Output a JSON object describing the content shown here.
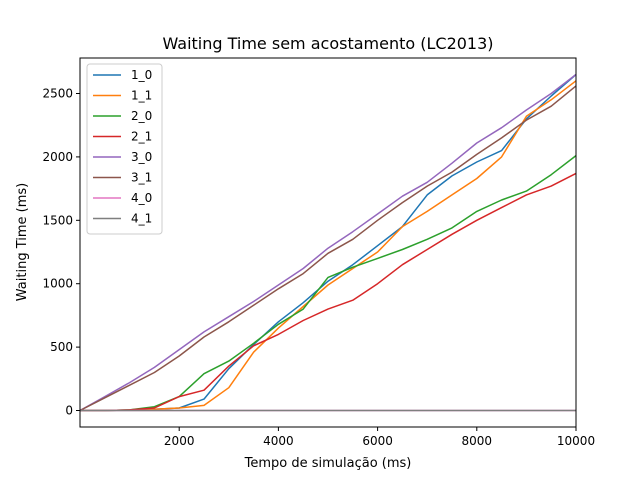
{
  "chart_data": {
    "type": "line",
    "title": "Waiting Time sem acostamento (LC2013)",
    "xlabel": "Tempo de simulação (ms)",
    "ylabel": "Waiting Time (ms)",
    "xlim": [
      0,
      10000
    ],
    "ylim": [
      -130,
      2780
    ],
    "xticks": [
      2000,
      4000,
      6000,
      8000,
      10000
    ],
    "yticks": [
      0,
      500,
      1000,
      1500,
      2000,
      2500
    ],
    "xtick_labels": [
      "2000",
      "4000",
      "6000",
      "8000",
      "10000"
    ],
    "ytick_labels": [
      "0",
      "500",
      "1000",
      "1500",
      "2000",
      "2500"
    ],
    "grid": false,
    "legend": "top-left",
    "x": [
      0,
      500,
      1000,
      1500,
      2000,
      2500,
      3000,
      3500,
      4000,
      4500,
      5000,
      5500,
      6000,
      6500,
      7000,
      7500,
      8000,
      8500,
      9000,
      9500,
      10000
    ],
    "series": [
      {
        "name": "1_0",
        "color": "#1f77b4",
        "values": [
          0,
          0,
          5,
          10,
          20,
          90,
          330,
          520,
          700,
          850,
          1020,
          1150,
          1300,
          1450,
          1700,
          1850,
          1960,
          2050,
          2300,
          2480,
          2650
        ]
      },
      {
        "name": "1_1",
        "color": "#ff7f0e",
        "values": [
          0,
          0,
          5,
          10,
          20,
          40,
          180,
          460,
          650,
          820,
          990,
          1120,
          1250,
          1450,
          1570,
          1700,
          1830,
          2000,
          2320,
          2450,
          2600
        ]
      },
      {
        "name": "2_0",
        "color": "#2ca02c",
        "values": [
          0,
          0,
          5,
          30,
          110,
          290,
          390,
          530,
          680,
          800,
          1050,
          1130,
          1200,
          1270,
          1350,
          1440,
          1570,
          1660,
          1730,
          1860,
          2010
        ]
      },
      {
        "name": "2_1",
        "color": "#d62728",
        "values": [
          0,
          0,
          5,
          20,
          110,
          160,
          350,
          510,
          600,
          710,
          800,
          870,
          1000,
          1150,
          1270,
          1390,
          1500,
          1600,
          1700,
          1770,
          1870
        ]
      },
      {
        "name": "3_0",
        "color": "#9467bd",
        "values": [
          0,
          110,
          220,
          340,
          480,
          620,
          740,
          860,
          990,
          1120,
          1280,
          1410,
          1550,
          1690,
          1800,
          1950,
          2110,
          2230,
          2370,
          2500,
          2650
        ]
      },
      {
        "name": "3_1",
        "color": "#8c564b",
        "values": [
          0,
          100,
          200,
          300,
          430,
          580,
          700,
          830,
          960,
          1080,
          1240,
          1350,
          1500,
          1640,
          1770,
          1880,
          2020,
          2150,
          2290,
          2400,
          2560
        ]
      },
      {
        "name": "4_0",
        "color": "#e377c2",
        "values": [
          0,
          0,
          0,
          0,
          0,
          0,
          0,
          0,
          0,
          0,
          0,
          0,
          0,
          0,
          0,
          0,
          0,
          0,
          0,
          0,
          0
        ]
      },
      {
        "name": "4_1",
        "color": "#7f7f7f",
        "values": [
          0,
          0,
          0,
          0,
          0,
          0,
          0,
          0,
          0,
          0,
          0,
          0,
          0,
          0,
          0,
          0,
          0,
          0,
          0,
          0,
          0
        ]
      }
    ]
  }
}
